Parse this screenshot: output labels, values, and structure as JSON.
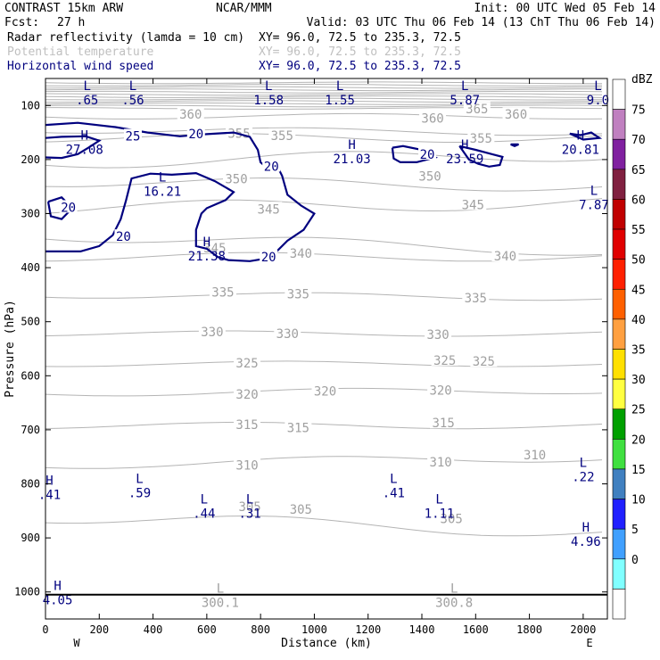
{
  "header": {
    "model": "CONTRAST 15km ARW",
    "org": "NCAR/MMM",
    "init": "Init: 00 UTC Wed 05 Feb 14",
    "fcst_label": "Fcst:",
    "fcst_value": "27 h",
    "valid": "Valid: 03 UTC Thu 06 Feb 14 (13 ChT Thu 06 Feb 14)",
    "fields": [
      {
        "name": "Radar reflectivity (lamda = 10 cm)",
        "xy": "XY=  96.0, 72.5 to 235.3, 72.5",
        "color": "#000000"
      },
      {
        "name": "Potential temperature",
        "xy": "XY=  96.0, 72.5 to 235.3, 72.5",
        "color": "#c0c0c0"
      },
      {
        "name": "Horizontal wind speed",
        "xy": "XY=  96.0, 72.5 to 235.3, 72.5",
        "color": "#00007f"
      }
    ]
  },
  "chart_data": {
    "type": "cross-section",
    "xlabel": "Distance (km)",
    "ylabel": "Pressure (hPa)",
    "xlim": [
      0,
      2090
    ],
    "ylim": [
      1050,
      50
    ],
    "x_ticks": [
      0,
      200,
      400,
      600,
      800,
      1000,
      1200,
      1400,
      1600,
      1800,
      2000
    ],
    "y_ticks": [
      100,
      200,
      300,
      400,
      500,
      600,
      700,
      800,
      900,
      1000
    ],
    "west_label": "W",
    "east_label": "E",
    "surface_pressure": 1005,
    "theta_labels": [
      {
        "x": 540,
        "p": 118,
        "v": "360"
      },
      {
        "x": 1440,
        "p": 125,
        "v": "360"
      },
      {
        "x": 1750,
        "p": 118,
        "v": "360"
      },
      {
        "x": 1605,
        "p": 108,
        "v": "365"
      },
      {
        "x": 720,
        "p": 153,
        "v": "355"
      },
      {
        "x": 880,
        "p": 157,
        "v": "355"
      },
      {
        "x": 1620,
        "p": 162,
        "v": "355"
      },
      {
        "x": 710,
        "p": 237,
        "v": "350"
      },
      {
        "x": 1430,
        "p": 232,
        "v": "350"
      },
      {
        "x": 830,
        "p": 293,
        "v": "345"
      },
      {
        "x": 1590,
        "p": 285,
        "v": "345"
      },
      {
        "x": 630,
        "p": 365,
        "v": "345"
      },
      {
        "x": 950,
        "p": 375,
        "v": "340"
      },
      {
        "x": 1710,
        "p": 380,
        "v": "340"
      },
      {
        "x": 660,
        "p": 447,
        "v": "335"
      },
      {
        "x": 940,
        "p": 450,
        "v": "335"
      },
      {
        "x": 1600,
        "p": 458,
        "v": "335"
      },
      {
        "x": 620,
        "p": 520,
        "v": "330"
      },
      {
        "x": 900,
        "p": 524,
        "v": "330"
      },
      {
        "x": 1460,
        "p": 525,
        "v": "330"
      },
      {
        "x": 750,
        "p": 578,
        "v": "325"
      },
      {
        "x": 1485,
        "p": 573,
        "v": "325"
      },
      {
        "x": 1630,
        "p": 575,
        "v": "325"
      },
      {
        "x": 750,
        "p": 636,
        "v": "320"
      },
      {
        "x": 1040,
        "p": 630,
        "v": "320"
      },
      {
        "x": 1470,
        "p": 628,
        "v": "320"
      },
      {
        "x": 750,
        "p": 692,
        "v": "315"
      },
      {
        "x": 940,
        "p": 698,
        "v": "315"
      },
      {
        "x": 1480,
        "p": 689,
        "v": "315"
      },
      {
        "x": 750,
        "p": 767,
        "v": "310"
      },
      {
        "x": 1470,
        "p": 761,
        "v": "310"
      },
      {
        "x": 1820,
        "p": 748,
        "v": "310"
      },
      {
        "x": 950,
        "p": 849,
        "v": "305"
      },
      {
        "x": 1510,
        "p": 866,
        "v": "305"
      },
      {
        "x": 760,
        "p": 844,
        "v": "305"
      }
    ],
    "theta_extrema": [
      {
        "kind": "L",
        "x": 650,
        "p": 1008,
        "v": "300.1"
      },
      {
        "kind": "L",
        "x": 1520,
        "p": 1008,
        "v": "300.8"
      }
    ],
    "wind_labels": [
      {
        "x": 325,
        "p": 158,
        "v": "25"
      },
      {
        "x": 560,
        "p": 154,
        "v": "20"
      },
      {
        "x": 840,
        "p": 214,
        "v": "20"
      },
      {
        "x": 1420,
        "p": 192,
        "v": "20"
      },
      {
        "x": 85,
        "p": 290,
        "v": "20"
      },
      {
        "x": 290,
        "p": 344,
        "v": "20"
      },
      {
        "x": 830,
        "p": 382,
        "v": "20"
      }
    ],
    "wind_extrema": [
      {
        "kind": "L",
        "x": 155,
        "p": 78,
        "v": ".65"
      },
      {
        "kind": "L",
        "x": 325,
        "p": 78,
        "v": ".56"
      },
      {
        "kind": "L",
        "x": 830,
        "p": 78,
        "v": "1.58"
      },
      {
        "kind": "L",
        "x": 1095,
        "p": 78,
        "v": "1.55"
      },
      {
        "kind": "L",
        "x": 1560,
        "p": 78,
        "v": "5.87"
      },
      {
        "kind": "L",
        "x": 2055,
        "p": 78,
        "v": "9.0"
      },
      {
        "kind": "H",
        "x": 145,
        "p": 170,
        "v": "27.08"
      },
      {
        "kind": "H",
        "x": 1140,
        "p": 187,
        "v": "21.03"
      },
      {
        "kind": "H",
        "x": 1560,
        "p": 187,
        "v": "23.59"
      },
      {
        "kind": "H",
        "x": 1990,
        "p": 170,
        "v": "20.81"
      },
      {
        "kind": "L",
        "x": 435,
        "p": 247,
        "v": "16.21"
      },
      {
        "kind": "L",
        "x": 2040,
        "p": 272,
        "v": "7.87"
      },
      {
        "kind": "H",
        "x": 600,
        "p": 367,
        "v": "21.38"
      },
      {
        "kind": "H",
        "x": 15,
        "p": 808,
        "v": ".41"
      },
      {
        "kind": "L",
        "x": 350,
        "p": 805,
        "v": ".59"
      },
      {
        "kind": "L",
        "x": 590,
        "p": 843,
        "v": ".44"
      },
      {
        "kind": "L",
        "x": 760,
        "p": 843,
        "v": ".31"
      },
      {
        "kind": "L",
        "x": 1295,
        "p": 805,
        "v": ".41"
      },
      {
        "kind": "L",
        "x": 1465,
        "p": 843,
        "v": "1.11"
      },
      {
        "kind": "L",
        "x": 2000,
        "p": 775,
        "v": ".22"
      },
      {
        "kind": "H",
        "x": 2010,
        "p": 895,
        "v": "4.96"
      },
      {
        "kind": "H",
        "x": 45,
        "p": 1003,
        "v": "4.05"
      }
    ],
    "colorbar": {
      "unit": "dBZ",
      "labels": [
        "75",
        "70",
        "65",
        "60",
        "55",
        "50",
        "45",
        "40",
        "35",
        "30",
        "25",
        "20",
        "15",
        "10",
        "5",
        "0"
      ],
      "colors": [
        "#ffffff",
        "#c080c0",
        "#8020a0",
        "#802040",
        "#c00000",
        "#e00000",
        "#ff2000",
        "#ff6000",
        "#ffa040",
        "#ffe000",
        "#ffff40",
        "#00a000",
        "#40e040",
        "#4080c0",
        "#2020ff",
        "#40a0ff",
        "#80ffff",
        "#ffffff"
      ]
    },
    "colors": {
      "axis": "#000000",
      "theta": "#b4b4b4",
      "wind": "#00007f"
    }
  }
}
